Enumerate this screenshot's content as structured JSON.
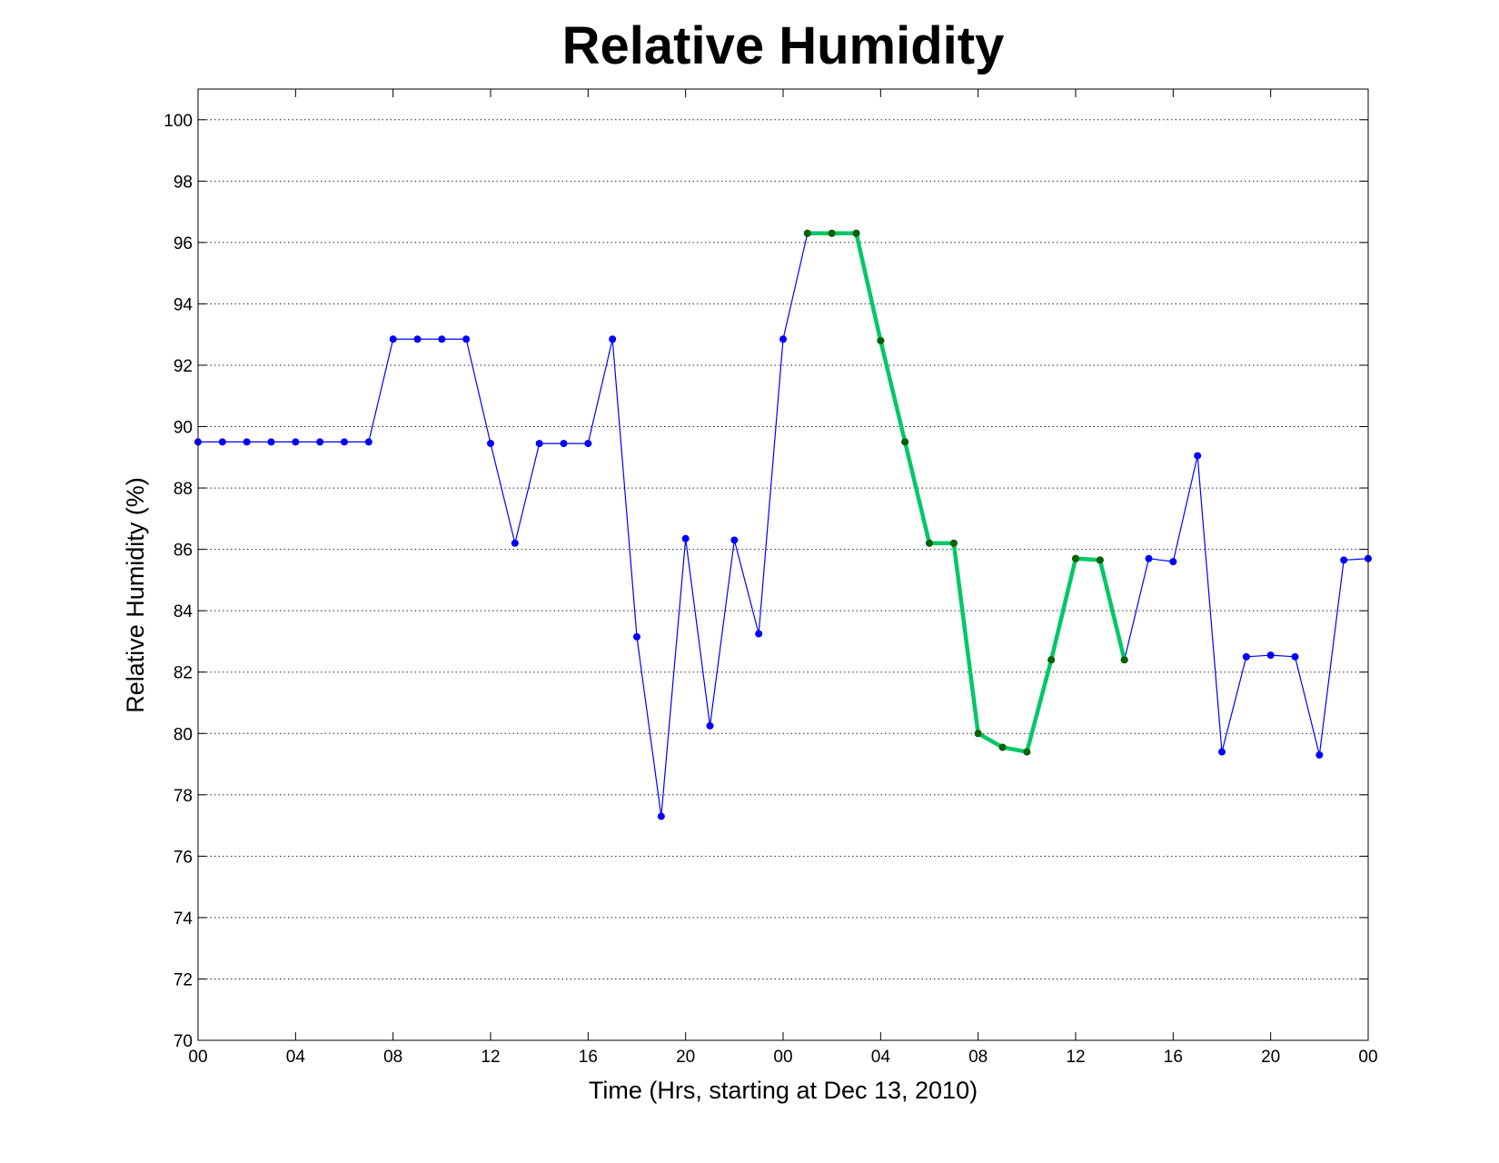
{
  "chart_data": {
    "type": "line",
    "title": "Relative Humidity",
    "xlabel": "Time (Hrs, starting at Dec 13, 2010)",
    "ylabel": "Relative Humidity (%)",
    "xlim": [
      0,
      48
    ],
    "ylim": [
      70,
      101
    ],
    "grid": "y-major-dotted",
    "x_ticks": [
      0,
      4,
      8,
      12,
      16,
      20,
      24,
      28,
      32,
      36,
      40,
      44,
      48
    ],
    "x_tick_labels": [
      "00",
      "04",
      "08",
      "12",
      "16",
      "20",
      "00",
      "04",
      "08",
      "12",
      "16",
      "20",
      "00"
    ],
    "y_ticks": [
      70,
      72,
      74,
      76,
      78,
      80,
      82,
      84,
      86,
      88,
      90,
      92,
      94,
      96,
      98,
      100
    ],
    "y_tick_labels": [
      "70",
      "72",
      "74",
      "76",
      "78",
      "80",
      "82",
      "84",
      "86",
      "88",
      "90",
      "92",
      "94",
      "96",
      "98",
      "100"
    ],
    "x": [
      0,
      1,
      2,
      3,
      4,
      5,
      6,
      7,
      8,
      9,
      10,
      11,
      12,
      13,
      14,
      15,
      16,
      17,
      18,
      19,
      20,
      21,
      22,
      23,
      24,
      25,
      26,
      27,
      28,
      29,
      30,
      31,
      32,
      33,
      34,
      35,
      36,
      37,
      38,
      39,
      40,
      41,
      42,
      43,
      44,
      45,
      46,
      47,
      48
    ],
    "series": [
      {
        "values": [
          89.5,
          89.5,
          89.5,
          89.5,
          89.5,
          89.5,
          89.5,
          89.5,
          92.85,
          92.85,
          92.85,
          92.85,
          89.45,
          86.2,
          89.45,
          89.45,
          89.45,
          92.85,
          83.15,
          77.3,
          86.35,
          80.25,
          86.3,
          83.25,
          92.85,
          96.3,
          96.3,
          96.3,
          92.8,
          89.5,
          86.2,
          86.2,
          80.0,
          79.55,
          79.4,
          82.4,
          85.7,
          85.65,
          82.4,
          85.7,
          85.6,
          89.05,
          79.4,
          82.5,
          82.55,
          82.5,
          79.3,
          85.65,
          85.7
        ],
        "color": "#0000ff",
        "marker_color": "#0000ff"
      },
      {
        "x": [
          25,
          26,
          27,
          28,
          29,
          30,
          31,
          32,
          33,
          34,
          35,
          36,
          37,
          38
        ],
        "values": [
          96.3,
          96.3,
          96.3,
          92.8,
          89.5,
          86.2,
          86.2,
          80.0,
          79.55,
          79.4,
          82.4,
          85.7,
          85.65,
          82.4
        ],
        "color": "#00c864",
        "marker_color": "#006400",
        "emphasis": "thick"
      }
    ]
  }
}
